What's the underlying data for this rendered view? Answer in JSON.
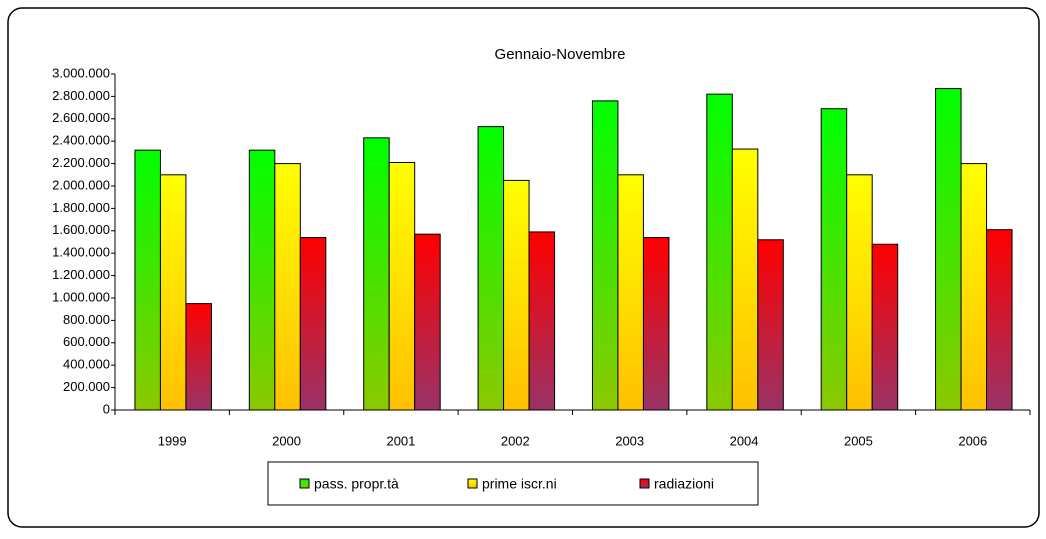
{
  "chart_data": {
    "type": "bar",
    "title": "Gennaio-Novembre",
    "categories": [
      "1999",
      "2000",
      "2001",
      "2002",
      "2003",
      "2004",
      "2005",
      "2006"
    ],
    "series": [
      {
        "name": "pass. propr.tà",
        "color": "#00ff00",
        "color_end": "#8cc800",
        "values": [
          2320000,
          2320000,
          2430000,
          2530000,
          2760000,
          2820000,
          2690000,
          2870000
        ]
      },
      {
        "name": "prime iscr.ni",
        "color": "#ffff00",
        "color_end": "#ffc000",
        "values": [
          2100000,
          2200000,
          2210000,
          2050000,
          2100000,
          2330000,
          2100000,
          2200000
        ]
      },
      {
        "name": "radiazioni",
        "color": "#ff0000",
        "color_end": "#993366",
        "values": [
          950000,
          1540000,
          1570000,
          1590000,
          1540000,
          1520000,
          1480000,
          1610000
        ]
      }
    ],
    "ylim": [
      0,
      3000000
    ],
    "yticks": [
      0,
      {
        "value": 200000,
        "label": "200.000"
      },
      {
        "value": 400000,
        "label": "400.000"
      },
      {
        "value": 600000,
        "label": "600.000"
      },
      {
        "value": 800000,
        "label": "800.000"
      },
      {
        "value": 1000000,
        "label": "1.000.000"
      },
      {
        "value": 1200000,
        "label": "1.200.000"
      },
      {
        "value": 1400000,
        "label": "1.400.000"
      },
      {
        "value": 1600000,
        "label": "1.600.000"
      },
      {
        "value": 1800000,
        "label": "1.800.000"
      },
      {
        "value": 2000000,
        "label": "2.000.000"
      },
      {
        "value": 2200000,
        "label": "2.200.000"
      },
      {
        "value": 2400000,
        "label": "2.400.000"
      },
      {
        "value": 2600000,
        "label": "2.600.000"
      },
      {
        "value": 2800000,
        "label": "2.800.000"
      },
      {
        "value": 3000000,
        "label": "3.000.000"
      }
    ],
    "grid": false
  }
}
